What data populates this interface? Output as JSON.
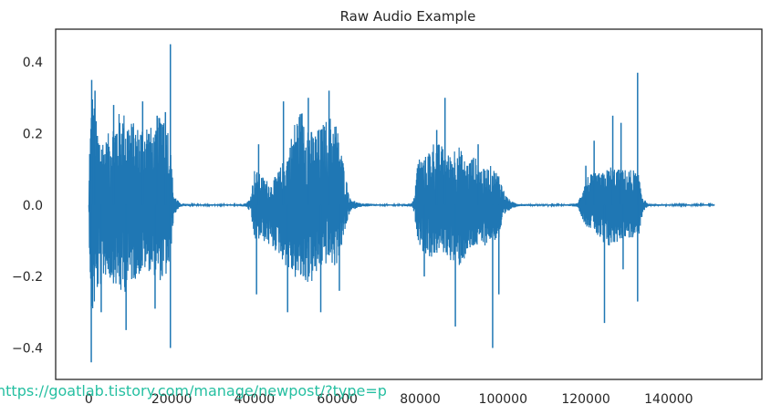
{
  "chart_data": {
    "type": "line",
    "title": "Raw Audio Example",
    "xlabel": "",
    "ylabel": "",
    "xlim": [
      -8000,
      162500
    ],
    "ylim": [
      -0.488,
      0.492
    ],
    "x_ticks": [
      0,
      20000,
      40000,
      60000,
      80000,
      100000,
      120000,
      140000
    ],
    "x_tick_labels": [
      "0",
      "20000",
      "40000",
      "60000",
      "80000",
      "100000",
      "120000",
      "140000"
    ],
    "y_ticks": [
      0.4,
      0.2,
      0.0,
      -0.2,
      -0.4
    ],
    "y_tick_labels": [
      "0.4",
      "0.2",
      "0.0",
      "−0.2",
      "−0.4"
    ],
    "grid": false,
    "series": [
      {
        "color": "#1f77b4",
        "n_samples": 151000,
        "envelope": {
          "x": [
            0,
            200,
            800,
            2000,
            4000,
            6000,
            8000,
            10000,
            12000,
            14000,
            16000,
            18000,
            19500,
            20500,
            22000,
            25000,
            30000,
            35000,
            38000,
            39000,
            40000,
            42000,
            44000,
            46000,
            48000,
            50000,
            52000,
            54000,
            56000,
            58000,
            59500,
            61000,
            63000,
            65000,
            70000,
            75000,
            78000,
            78500,
            79500,
            81000,
            83000,
            85000,
            87000,
            89000,
            91000,
            93000,
            95000,
            97000,
            99000,
            100500,
            102000,
            104000,
            110000,
            115000,
            118000,
            118500,
            120000,
            122000,
            124000,
            126000,
            128000,
            130000,
            131500,
            133000,
            133800,
            135000,
            140000,
            151000
          ],
          "upper": [
            0.0,
            0.18,
            0.33,
            0.22,
            0.18,
            0.24,
            0.27,
            0.24,
            0.22,
            0.24,
            0.2,
            0.3,
            0.2,
            0.03,
            0.005,
            0.002,
            0.002,
            0.002,
            0.005,
            0.02,
            0.1,
            0.08,
            0.06,
            0.1,
            0.15,
            0.25,
            0.28,
            0.2,
            0.22,
            0.25,
            0.25,
            0.15,
            0.02,
            0.006,
            0.002,
            0.002,
            0.005,
            0.02,
            0.14,
            0.13,
            0.18,
            0.17,
            0.14,
            0.18,
            0.12,
            0.14,
            0.1,
            0.11,
            0.09,
            0.03,
            0.01,
            0.003,
            0.002,
            0.002,
            0.005,
            0.02,
            0.08,
            0.09,
            0.09,
            0.11,
            0.1,
            0.1,
            0.1,
            0.08,
            0.02,
            0.003,
            0.002,
            0.002
          ],
          "lower": [
            0.0,
            -0.16,
            -0.33,
            -0.25,
            -0.2,
            -0.22,
            -0.26,
            -0.22,
            -0.2,
            -0.18,
            -0.2,
            -0.22,
            -0.18,
            -0.03,
            -0.005,
            -0.002,
            -0.002,
            -0.002,
            -0.005,
            -0.02,
            -0.1,
            -0.1,
            -0.12,
            -0.14,
            -0.18,
            -0.21,
            -0.22,
            -0.22,
            -0.18,
            -0.16,
            -0.18,
            -0.12,
            -0.02,
            -0.006,
            -0.002,
            -0.002,
            -0.005,
            -0.02,
            -0.1,
            -0.14,
            -0.15,
            -0.13,
            -0.15,
            -0.18,
            -0.15,
            -0.12,
            -0.12,
            -0.1,
            -0.1,
            -0.03,
            -0.01,
            -0.003,
            -0.002,
            -0.002,
            -0.005,
            -0.02,
            -0.06,
            -0.07,
            -0.12,
            -0.12,
            -0.1,
            -0.09,
            -0.1,
            -0.08,
            -0.02,
            -0.003,
            -0.002,
            -0.002
          ]
        },
        "spikes": [
          {
            "x": 700,
            "y": 0.35
          },
          {
            "x": 600,
            "y": -0.44
          },
          {
            "x": 19700,
            "y": 0.45
          },
          {
            "x": 19700,
            "y": -0.4
          },
          {
            "x": 1500,
            "y": 0.32
          },
          {
            "x": 3000,
            "y": -0.3
          },
          {
            "x": 6000,
            "y": 0.28
          },
          {
            "x": 9000,
            "y": -0.35
          },
          {
            "x": 13000,
            "y": 0.29
          },
          {
            "x": 16000,
            "y": -0.29
          },
          {
            "x": 18500,
            "y": 0.26
          },
          {
            "x": 16500,
            "y": 0.25
          },
          {
            "x": 47000,
            "y": 0.29
          },
          {
            "x": 48000,
            "y": -0.3
          },
          {
            "x": 58000,
            "y": 0.32
          },
          {
            "x": 56000,
            "y": -0.3
          },
          {
            "x": 41000,
            "y": 0.17
          },
          {
            "x": 40500,
            "y": -0.25
          },
          {
            "x": 53000,
            "y": 0.3
          },
          {
            "x": 60500,
            "y": -0.24
          },
          {
            "x": 86000,
            "y": 0.3
          },
          {
            "x": 88500,
            "y": -0.34
          },
          {
            "x": 97500,
            "y": -0.4
          },
          {
            "x": 84000,
            "y": 0.21
          },
          {
            "x": 94000,
            "y": 0.17
          },
          {
            "x": 99000,
            "y": -0.25
          },
          {
            "x": 81000,
            "y": -0.2
          },
          {
            "x": 132500,
            "y": 0.37
          },
          {
            "x": 132500,
            "y": -0.27
          },
          {
            "x": 124500,
            "y": -0.33
          },
          {
            "x": 126500,
            "y": 0.25
          },
          {
            "x": 128500,
            "y": 0.23
          },
          {
            "x": 122000,
            "y": 0.18
          },
          {
            "x": 120000,
            "y": 0.11
          },
          {
            "x": 129000,
            "y": -0.18
          }
        ]
      }
    ]
  },
  "watermark": "https://goatlab.tistory.com/manage/newpost/?type=p"
}
